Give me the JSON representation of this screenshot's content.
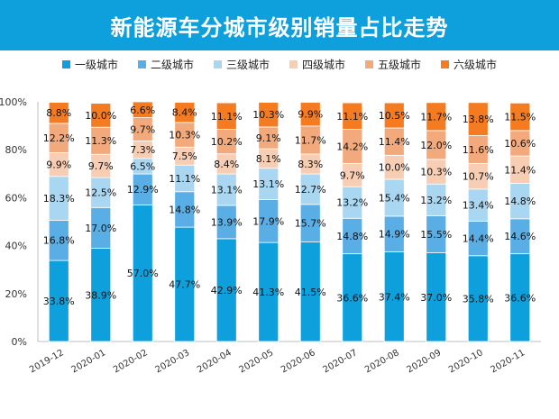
{
  "title": "新能源车分城市级别销量占比走势",
  "legend": [
    {
      "name": "一级城市",
      "color": "#0ea0dc"
    },
    {
      "name": "二级城市",
      "color": "#5aaee6"
    },
    {
      "name": "三级城市",
      "color": "#a9d6f0"
    },
    {
      "name": "四级城市",
      "color": "#f7cdb3"
    },
    {
      "name": "五级城市",
      "color": "#f2a97c"
    },
    {
      "name": "六级城市",
      "color": "#f47b20"
    }
  ],
  "chart_data": {
    "type": "bar",
    "stacked": true,
    "categories": [
      "2019-12",
      "2020-01",
      "2020-02",
      "2020-03",
      "2020-04",
      "2020-05",
      "2020-06",
      "2020-07",
      "2020-08",
      "2020-09",
      "2020-10",
      "2020-11"
    ],
    "series": [
      {
        "name": "一级城市",
        "values": [
          33.8,
          38.9,
          57.0,
          47.7,
          42.9,
          41.3,
          41.5,
          36.6,
          37.4,
          37.0,
          35.8,
          36.6
        ]
      },
      {
        "name": "二级城市",
        "values": [
          16.8,
          17.0,
          12.9,
          14.8,
          13.9,
          17.9,
          15.7,
          14.8,
          14.9,
          15.5,
          14.4,
          14.6
        ]
      },
      {
        "name": "三级城市",
        "values": [
          18.3,
          12.5,
          6.5,
          11.1,
          13.1,
          13.1,
          12.7,
          13.2,
          15.4,
          13.2,
          13.4,
          14.8
        ]
      },
      {
        "name": "四级城市",
        "values": [
          9.9,
          9.7,
          7.3,
          7.5,
          8.4,
          8.1,
          8.3,
          9.7,
          10.0,
          10.3,
          10.7,
          11.4
        ]
      },
      {
        "name": "五级城市",
        "values": [
          12.2,
          11.3,
          9.7,
          10.3,
          10.2,
          9.1,
          11.7,
          14.2,
          11.4,
          12.0,
          11.6,
          10.6
        ]
      },
      {
        "name": "六级城市",
        "values": [
          8.8,
          10.0,
          6.6,
          8.4,
          11.1,
          10.3,
          9.9,
          11.1,
          10.5,
          11.7,
          13.8,
          11.5
        ]
      }
    ],
    "ylim": [
      0,
      100
    ],
    "yticks": [
      "0%",
      "20%",
      "40%",
      "60%",
      "80%",
      "100%"
    ],
    "grid": false,
    "legend_position": "top"
  }
}
